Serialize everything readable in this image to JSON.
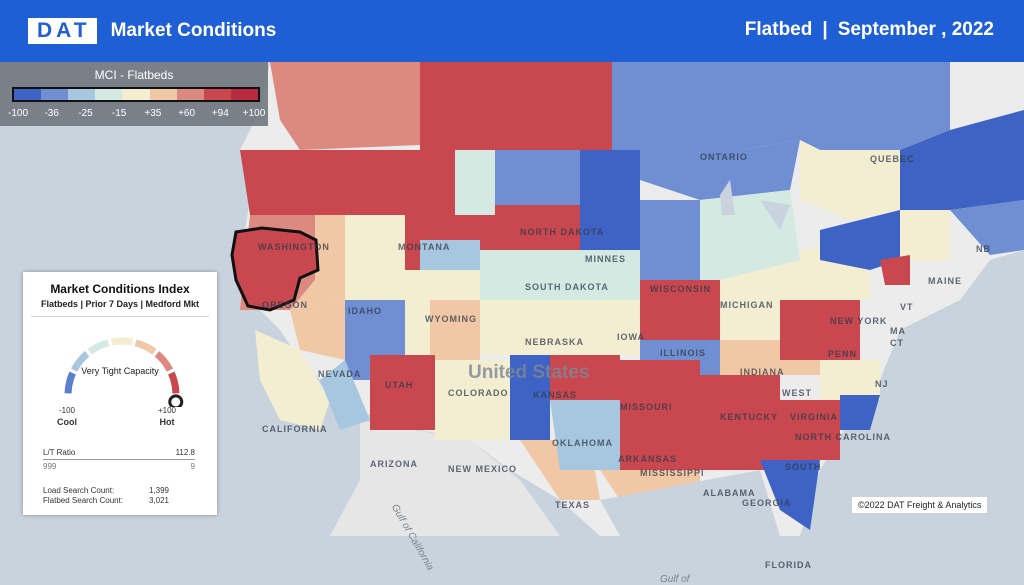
{
  "header": {
    "logo": "DAT",
    "title": "Market Conditions",
    "equipment": "Flatbed",
    "separator": "|",
    "period": "September , 2022"
  },
  "legend": {
    "title": "MCI - Flatbeds",
    "colors": [
      "#3e63c4",
      "#6f8fd2",
      "#a7c6e0",
      "#d3e9e2",
      "#f3eed2",
      "#f1c8a5",
      "#dc8a80",
      "#c9474f",
      "#b92c40"
    ],
    "ticks": [
      "-100",
      "-36",
      "-25",
      "-15",
      "+35",
      "+60",
      "+94",
      "+100"
    ]
  },
  "map": {
    "country_label": "United States",
    "water_labels": [
      "Gulf of California",
      "Gulf of"
    ],
    "region_labels": [
      "ONTARIO",
      "QUEBEC",
      "WASHINGTON",
      "MONTANA",
      "NORTH DAKOTA",
      "MINNES",
      "SOUTH DAKOTA",
      "OREGON",
      "IDAHO",
      "WYOMING",
      "NEBRASKA",
      "WISCONSIN",
      "MICHIGAN",
      "IOWA",
      "NEVADA",
      "UTAH",
      "COLORADO",
      "KANSAS",
      "ILLINOIS",
      "INDIANA",
      "MISSOURI",
      "KENTUCKY",
      "CALIFORNIA",
      "ARIZONA",
      "NEW MEXICO",
      "OKLAHOMA",
      "ARKANSAS",
      "TEXAS",
      "MISSISSIPPI",
      "ALABAMA",
      "GEORGIA",
      "NORTH CAROLINA",
      "SOUTH",
      "VIRGINIA",
      "WEST",
      "PENN",
      "NEW YORK",
      "MAINE",
      "NB",
      "NJ",
      "MA",
      "CT",
      "VT",
      "FLORIDA"
    ]
  },
  "panel": {
    "title": "Market Conditions Index",
    "subtitle": "Flatbeds | Prior 7 Days | Medford Mkt",
    "gauge": {
      "status": "Very Tight Capacity",
      "min_label": "-100",
      "min_text": "Cool",
      "max_label": "+100",
      "max_text": "Hot",
      "value_fraction": 0.97
    },
    "lt_ratio_label": "L/T Ratio",
    "lt_ratio_value": "112.8",
    "loads_value": "999",
    "trucks_value": "9",
    "load_search_label": "Load Search Count:",
    "load_search_value": "1,399",
    "flatbed_search_label": "Flatbed Search Count:",
    "flatbed_search_value": "3,021"
  },
  "footer": {
    "copyright": "©2022 DAT Freight & Analytics"
  }
}
